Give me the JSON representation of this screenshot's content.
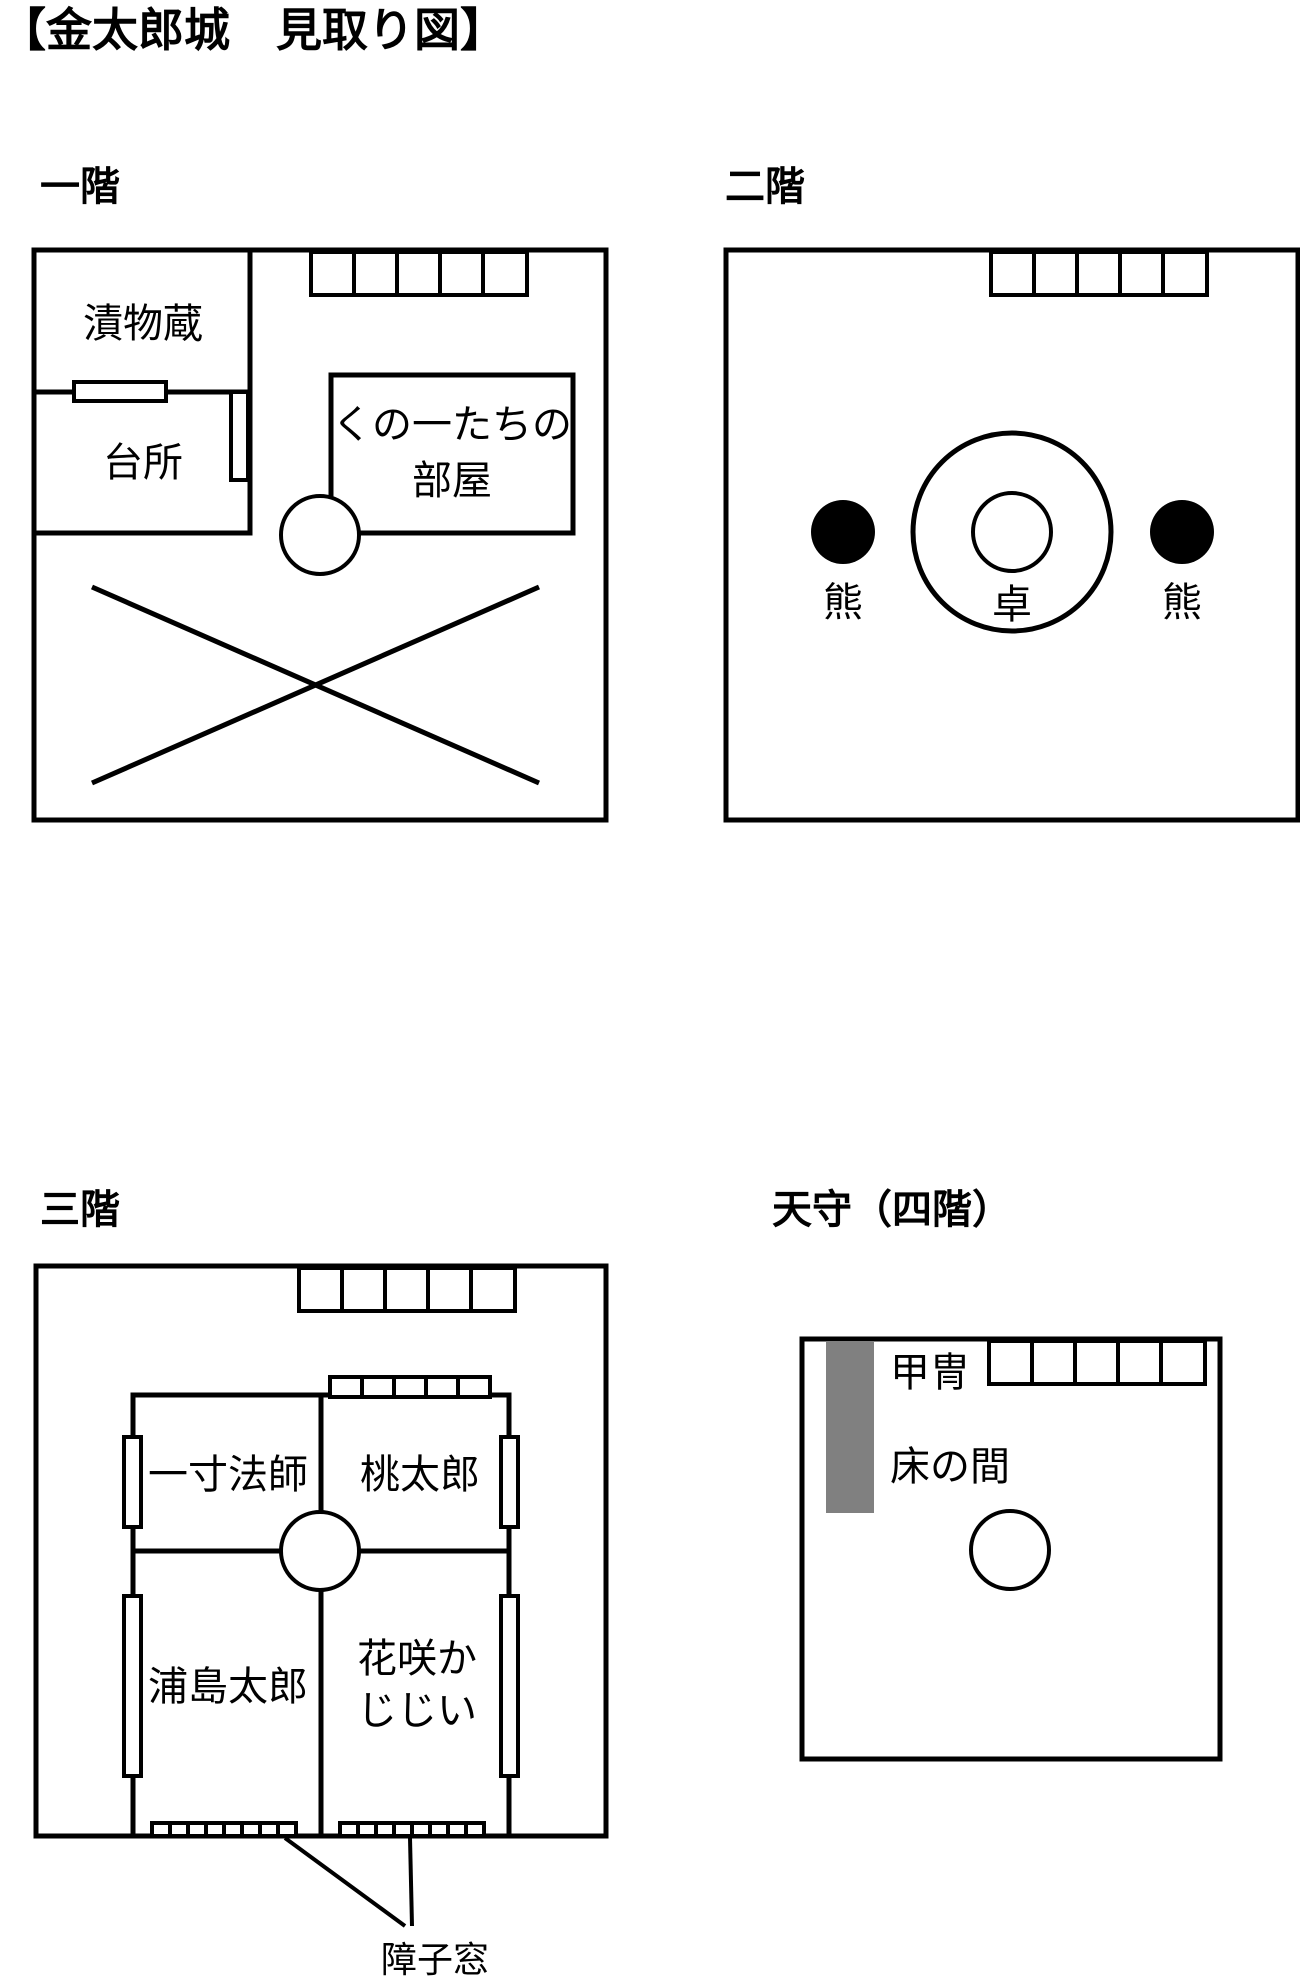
{
  "title": "【金太郎城　見取り図】",
  "floors": {
    "f1": {
      "label": "一階",
      "rooms": {
        "tsukemono": "漬物蔵",
        "daidokoro": "台所",
        "kunoichi_1": "くの一たちの",
        "kunoichi_2": "部屋"
      }
    },
    "f2": {
      "label": "二階",
      "bear_left": "熊",
      "bear_right": "熊",
      "table": "卓"
    },
    "f3": {
      "label": "三階",
      "rooms": {
        "issun": "一寸法師",
        "momotaro": "桃太郎",
        "urashima": "浦島太郎",
        "hanasaka_1": "花咲か",
        "hanasaka_2": "じじい"
      },
      "shoji_label": "障子窓"
    },
    "f4": {
      "label": "天守（四階）",
      "armor": "甲冑",
      "alcove": "床の間",
      "alcove_color": "#808080"
    }
  }
}
